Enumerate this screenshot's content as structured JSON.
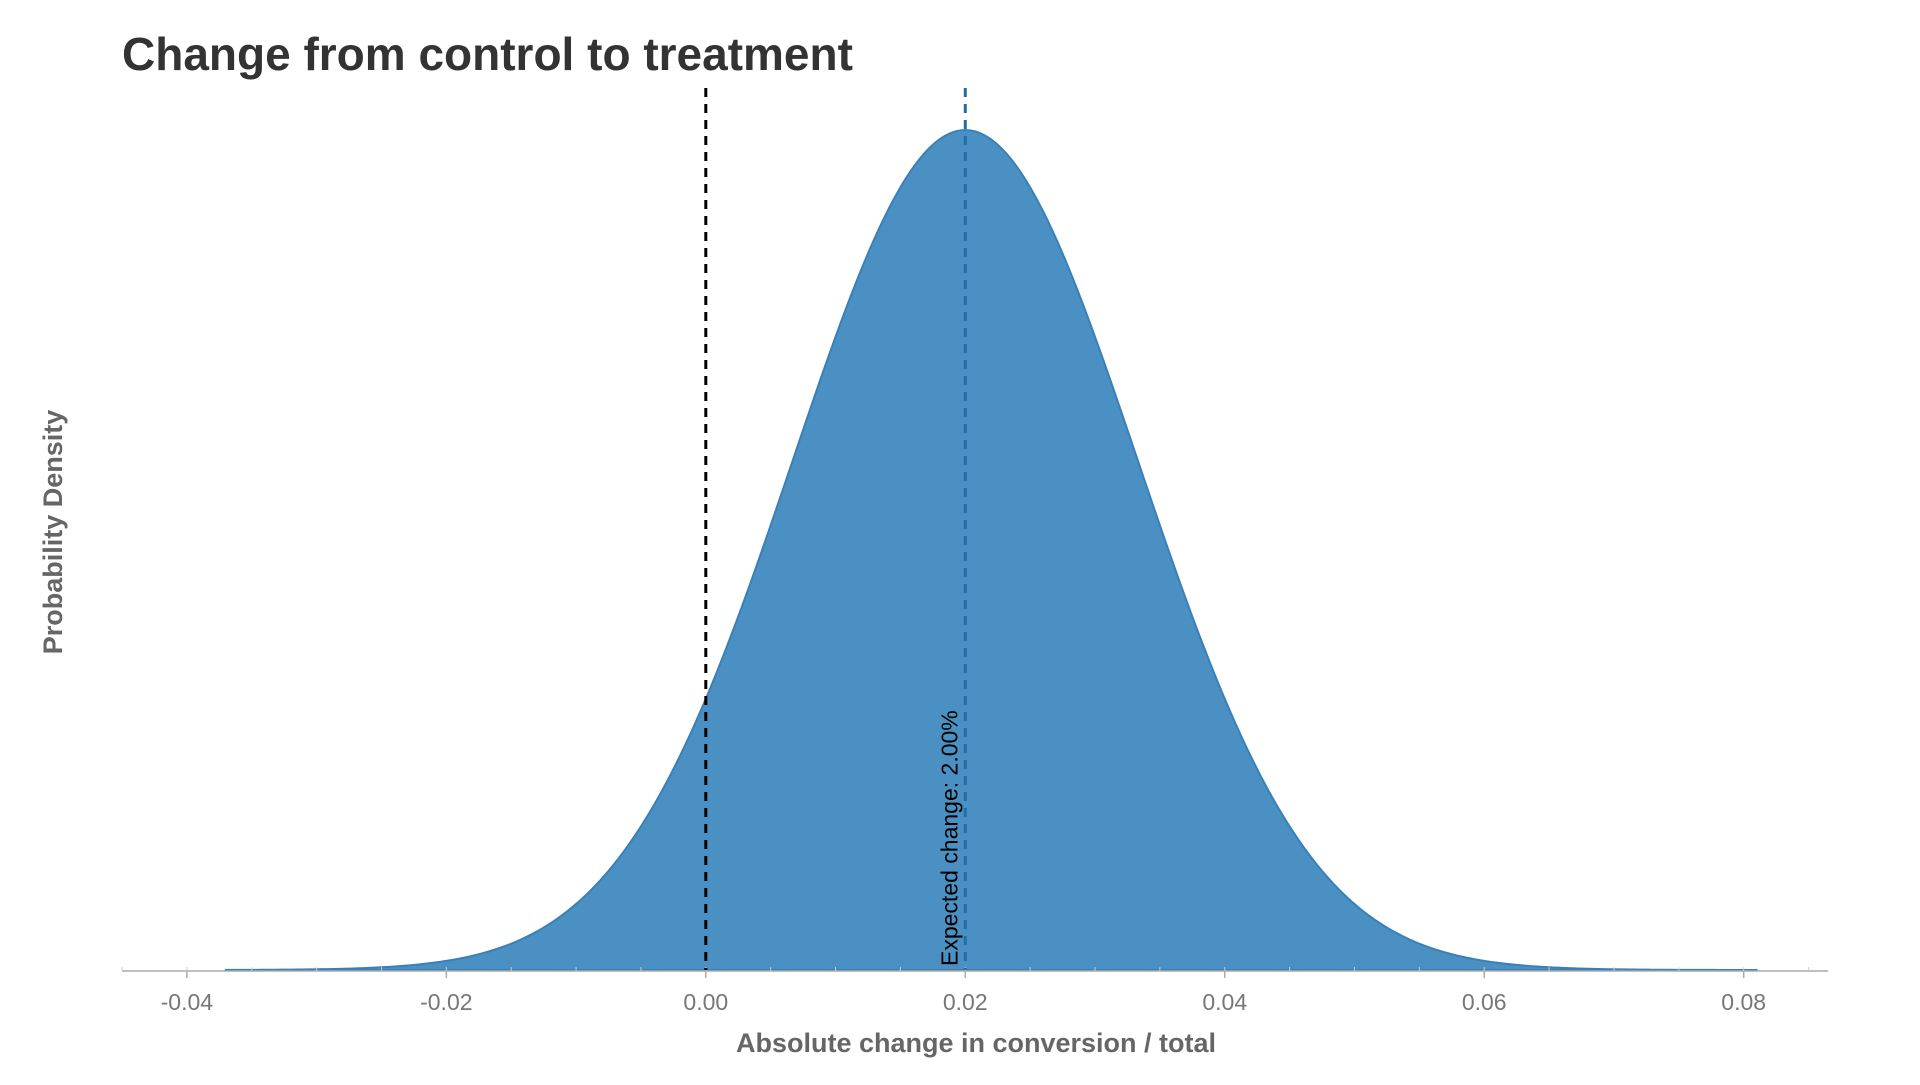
{
  "chart_data": {
    "type": "area",
    "title": "Change from control to treatment",
    "xlabel": "Absolute change in conversion / total",
    "ylabel": "Probability Density",
    "xlim": [
      -0.045,
      0.0865
    ],
    "x_ticks": [
      -0.04,
      -0.02,
      0.0,
      0.02,
      0.04,
      0.06,
      0.08
    ],
    "x_tick_labels": [
      "-0.04",
      "-0.02",
      "0.00",
      "0.02",
      "0.04",
      "0.06",
      "0.08"
    ],
    "y_ticks_shown": false,
    "grid": false,
    "density_mean": 0.02,
    "density_sd": 0.0133,
    "density_range": [
      -0.037,
      0.081
    ],
    "fill_color": "#4a90c2",
    "stroke_color": "#3a80b8",
    "reference_lines": [
      {
        "x": 0.0,
        "color": "#000000",
        "style": "dashed"
      },
      {
        "x": 0.02,
        "color": "#1f6fa8",
        "style": "dashed"
      }
    ],
    "annotation": {
      "x": 0.02,
      "text": "Expected change: 2.00%"
    }
  }
}
